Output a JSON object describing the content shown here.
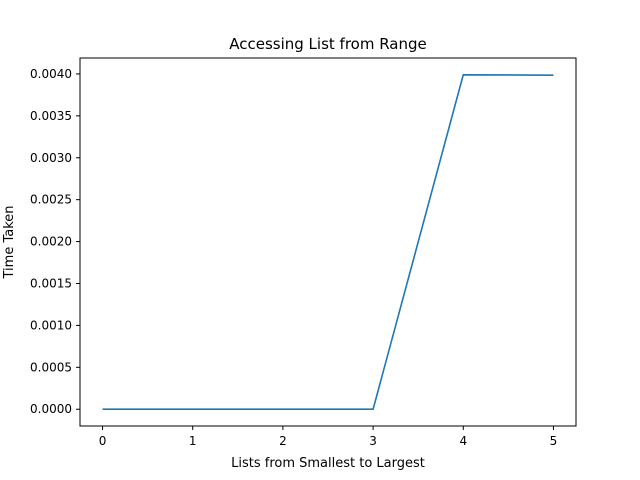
{
  "chart_data": {
    "type": "line",
    "title": "Accessing List from Range",
    "xlabel": "Lists from Smallest to Largest",
    "ylabel": "Time Taken",
    "x": [
      0,
      1,
      2,
      3,
      4,
      5
    ],
    "series": [
      {
        "values": [
          0.0,
          0.0,
          0.0,
          0.0,
          0.00399,
          0.003985
        ],
        "color": "#1f77b4"
      }
    ],
    "xticks": [
      0,
      1,
      2,
      3,
      4,
      5
    ],
    "xtick_labels": [
      "0",
      "1",
      "2",
      "3",
      "4",
      "5"
    ],
    "yticks": [
      0,
      0.0005,
      0.001,
      0.0015,
      0.002,
      0.0025,
      0.003,
      0.0035,
      0.004
    ],
    "ytick_labels": [
      "0.0000",
      "0.0005",
      "0.0010",
      "0.0015",
      "0.0020",
      "0.0025",
      "0.0030",
      "0.0035",
      "0.0040"
    ],
    "xlim": [
      -0.25,
      5.25
    ],
    "ylim": [
      -0.0002,
      0.00419
    ],
    "grid": false,
    "legend": "none"
  }
}
